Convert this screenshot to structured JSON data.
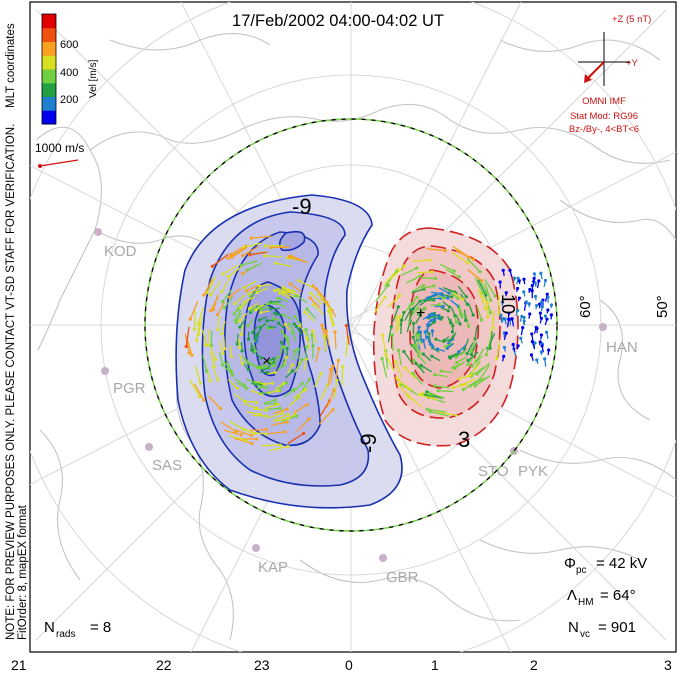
{
  "title": "17/Feb/2002 04:00-04:02 UT",
  "side_note_line1": "NOTE: FOR PREVIEW PURPOSES ONLY. PLEASE CONTACT VT-SD STAFF FOR VERIFICATION.",
  "side_note_line2": "FitOrder: 8, mapEX format",
  "coordinates_label": "MLT coordinates",
  "colorbar": {
    "label": "Vel [m/s]",
    "ticks": [
      "600",
      "400",
      "200"
    ],
    "colors": [
      "#0000ee",
      "#2080d0",
      "#20a040",
      "#70d040",
      "#d8e020",
      "#f8a020",
      "#f05010",
      "#e00000"
    ]
  },
  "scale_vector_label": "1000 m/s",
  "imf": {
    "z_label": "+Z (5 nT)",
    "y_label": "+Y",
    "source": "OMNI IMF",
    "model_line1": "Stat Mod: RG96",
    "model_line2": "Bz-/By-, 4<BT<6"
  },
  "contours": {
    "negative_label": "-9",
    "negative_label2": "-9",
    "positive_label": "3",
    "positive_label2": "10"
  },
  "latitude_labels": [
    "60°",
    "50°"
  ],
  "stations": [
    "KOD",
    "PGR",
    "SAS",
    "KAP",
    "GBR",
    "PYK",
    "STO",
    "HAN"
  ],
  "stats": {
    "phi_symbol": "Φ",
    "phi_sub": "pc",
    "phi_value": "= 42 kV",
    "lambda_symbol": "Λ",
    "lambda_sub": "HM",
    "lambda_value": "= 64°",
    "nvc_symbol": "N",
    "nvc_sub": "vc",
    "nvc_value": "= 901",
    "nrads_symbol": "N",
    "nrads_sub": "rads",
    "nrads_value": "= 8"
  },
  "mlt_axis": [
    "21",
    "22",
    "23",
    "0",
    "1",
    "2",
    "3"
  ]
}
